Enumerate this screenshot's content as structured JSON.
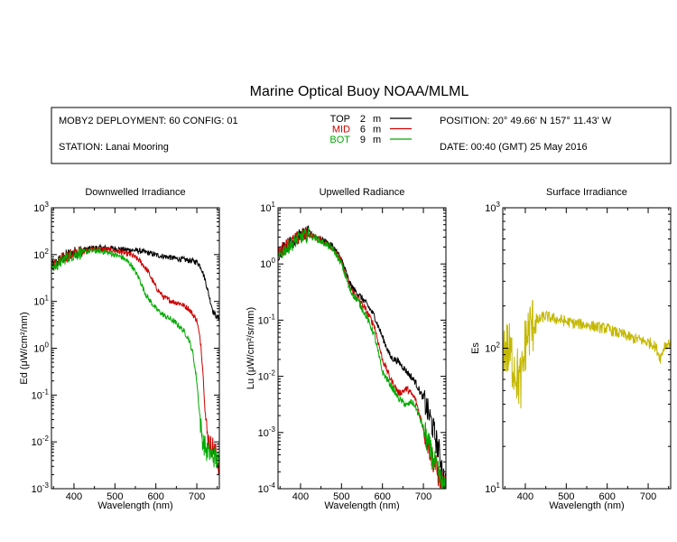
{
  "title": "Marine Optical Buoy NOAA/MLML",
  "header": {
    "deployment": "MOBY2 DEPLOYMENT: 60 CONFIG: 01",
    "station": "STATION: Lanai Mooring",
    "position": "POSITION: 20° 49.66' N   157° 11.43' W",
    "date": "DATE: 00:40 (GMT) 25 May 2016",
    "legend": [
      {
        "name": "TOP",
        "depth": "2",
        "unit": "m",
        "color": "#000000"
      },
      {
        "name": "MID",
        "depth": "6",
        "unit": "m",
        "color": "#cc0000"
      },
      {
        "name": "BOT",
        "depth": "9",
        "unit": "m",
        "color": "#00aa00"
      }
    ]
  },
  "colors": {
    "top": "#000000",
    "mid": "#cc0000",
    "bot": "#00aa00",
    "surface": "#c4b800"
  },
  "chart_data": [
    {
      "type": "line",
      "title": "Downwelled Irradiance",
      "xlabel": "Wavelength (nm)",
      "ylabel": "Ed  (μW/cm²/nm)",
      "xlim": [
        345,
        755
      ],
      "ylim": [
        0.001,
        1000
      ],
      "yscale": "log",
      "xticks": [
        400,
        500,
        600,
        700
      ],
      "yticks": [
        "10^-3",
        "10^-2",
        "10^-1",
        "10^0",
        "10^1",
        "10^2",
        "10^3"
      ],
      "noise": 0.06,
      "series": [
        {
          "name": "TOP",
          "color": "#000000",
          "x": [
            345,
            360,
            380,
            400,
            420,
            440,
            460,
            480,
            500,
            520,
            540,
            560,
            580,
            600,
            620,
            640,
            660,
            680,
            700,
            710,
            720,
            730,
            740,
            750,
            755
          ],
          "y": [
            55,
            70,
            95,
            110,
            125,
            135,
            140,
            138,
            135,
            128,
            125,
            120,
            110,
            98,
            92,
            85,
            80,
            75,
            70,
            55,
            30,
            13,
            6,
            4.5,
            4.5
          ]
        },
        {
          "name": "MID",
          "color": "#cc0000",
          "x": [
            345,
            360,
            380,
            400,
            420,
            440,
            460,
            480,
            500,
            520,
            540,
            560,
            580,
            600,
            620,
            640,
            660,
            680,
            700,
            710,
            715,
            720,
            725,
            730,
            735,
            740,
            745,
            750,
            755
          ],
          "y": [
            55,
            68,
            90,
            105,
            118,
            128,
            132,
            128,
            122,
            110,
            98,
            75,
            45,
            20,
            12,
            10,
            9,
            7,
            4,
            1.2,
            0.3,
            0.05,
            0.015,
            0.01,
            0.008,
            0.008,
            0.006,
            0.004,
            0.003
          ]
        },
        {
          "name": "BOT",
          "color": "#00aa00",
          "x": [
            345,
            360,
            380,
            400,
            420,
            440,
            460,
            480,
            500,
            520,
            540,
            560,
            570,
            580,
            600,
            620,
            640,
            660,
            670,
            680,
            690,
            700,
            705,
            710,
            715,
            720,
            725,
            730,
            740,
            750,
            755
          ],
          "y": [
            50,
            62,
            85,
            100,
            112,
            120,
            120,
            112,
            100,
            85,
            60,
            30,
            18,
            12,
            7,
            5,
            4,
            2.8,
            2.2,
            1.6,
            0.8,
            0.2,
            0.06,
            0.02,
            0.01,
            0.008,
            0.006,
            0.006,
            0.005,
            0.004,
            0.003
          ]
        }
      ]
    },
    {
      "type": "line",
      "title": "Upwelled Radiance",
      "xlabel": "Wavelength (nm)",
      "ylabel": "Lu  (μW/cm²/sr/nm)",
      "xlim": [
        345,
        755
      ],
      "ylim": [
        0.0001,
        10
      ],
      "yscale": "log",
      "xticks": [
        400,
        500,
        600,
        700
      ],
      "yticks": [
        "10^-4",
        "10^-3",
        "10^-2",
        "10^-1",
        "10^0",
        "10^1"
      ],
      "noise": 0.06,
      "series": [
        {
          "name": "TOP",
          "color": "#000000",
          "x": [
            345,
            360,
            380,
            400,
            420,
            440,
            460,
            480,
            500,
            510,
            520,
            530,
            540,
            560,
            580,
            600,
            620,
            640,
            660,
            680,
            700,
            720,
            740,
            750,
            755
          ],
          "y": [
            1.5,
            2,
            2.5,
            3.2,
            3.6,
            3,
            2.5,
            2,
            1.2,
            0.75,
            0.45,
            0.35,
            0.3,
            0.2,
            0.12,
            0.05,
            0.022,
            0.018,
            0.012,
            0.008,
            0.004,
            0.0015,
            0.0004,
            0.00015,
            0.00012
          ]
        },
        {
          "name": "MID",
          "color": "#cc0000",
          "x": [
            345,
            360,
            380,
            400,
            420,
            440,
            460,
            480,
            500,
            510,
            520,
            530,
            540,
            560,
            580,
            600,
            620,
            640,
            660,
            680,
            700,
            720,
            740,
            750,
            755
          ],
          "y": [
            1.5,
            2,
            2.5,
            3.1,
            3.4,
            2.9,
            2.4,
            1.9,
            1.1,
            0.65,
            0.4,
            0.3,
            0.25,
            0.15,
            0.08,
            0.02,
            0.009,
            0.005,
            0.006,
            0.004,
            0.0012,
            0.0004,
            0.00015,
            0.0001,
            0.0001
          ]
        },
        {
          "name": "BOT",
          "color": "#00aa00",
          "x": [
            345,
            360,
            380,
            400,
            420,
            440,
            460,
            480,
            500,
            510,
            520,
            530,
            540,
            560,
            580,
            600,
            620,
            640,
            660,
            670,
            680,
            700,
            720,
            740,
            750,
            755
          ],
          "y": [
            1.2,
            1.8,
            2.3,
            3,
            3.3,
            2.8,
            2.3,
            1.8,
            1,
            0.6,
            0.35,
            0.27,
            0.22,
            0.12,
            0.055,
            0.012,
            0.007,
            0.004,
            0.003,
            0.0035,
            0.003,
            0.0012,
            0.0004,
            0.00015,
            0.0001,
            0.0001
          ]
        }
      ]
    },
    {
      "type": "line",
      "title": "Surface Irradiance",
      "xlabel": "Wavelength (nm)",
      "ylabel": "Es",
      "xlim": [
        345,
        755
      ],
      "ylim": [
        10,
        1000
      ],
      "yscale": "log",
      "xticks": [
        400,
        500,
        600,
        700
      ],
      "yticks": [
        "10^1",
        "10^2",
        "10^3"
      ],
      "noise": 0.04,
      "series": [
        {
          "name": "Es",
          "color": "#c4b800",
          "x": [
            345,
            360,
            370,
            380,
            390,
            400,
            410,
            420,
            430,
            440,
            450,
            460,
            480,
            500,
            520,
            540,
            560,
            580,
            600,
            620,
            640,
            660,
            680,
            690,
            700,
            710,
            720,
            730,
            740,
            750,
            755
          ],
          "y": [
            105,
            95,
            80,
            65,
            55,
            110,
            135,
            150,
            155,
            165,
            170,
            165,
            160,
            155,
            150,
            148,
            145,
            140,
            138,
            130,
            125,
            118,
            115,
            112,
            110,
            108,
            100,
            85,
            105,
            108,
            110
          ]
        }
      ]
    }
  ]
}
